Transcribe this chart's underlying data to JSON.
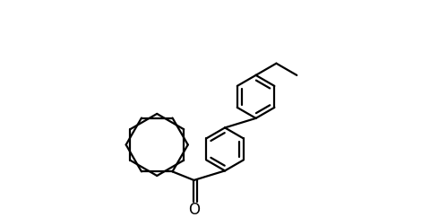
{
  "figure_width": 4.8,
  "figure_height": 2.42,
  "dpi": 100,
  "line_color": "#000000",
  "background_color": "#ffffff",
  "bond_width": 1.6,
  "font_size": 12,
  "o_label": "O"
}
